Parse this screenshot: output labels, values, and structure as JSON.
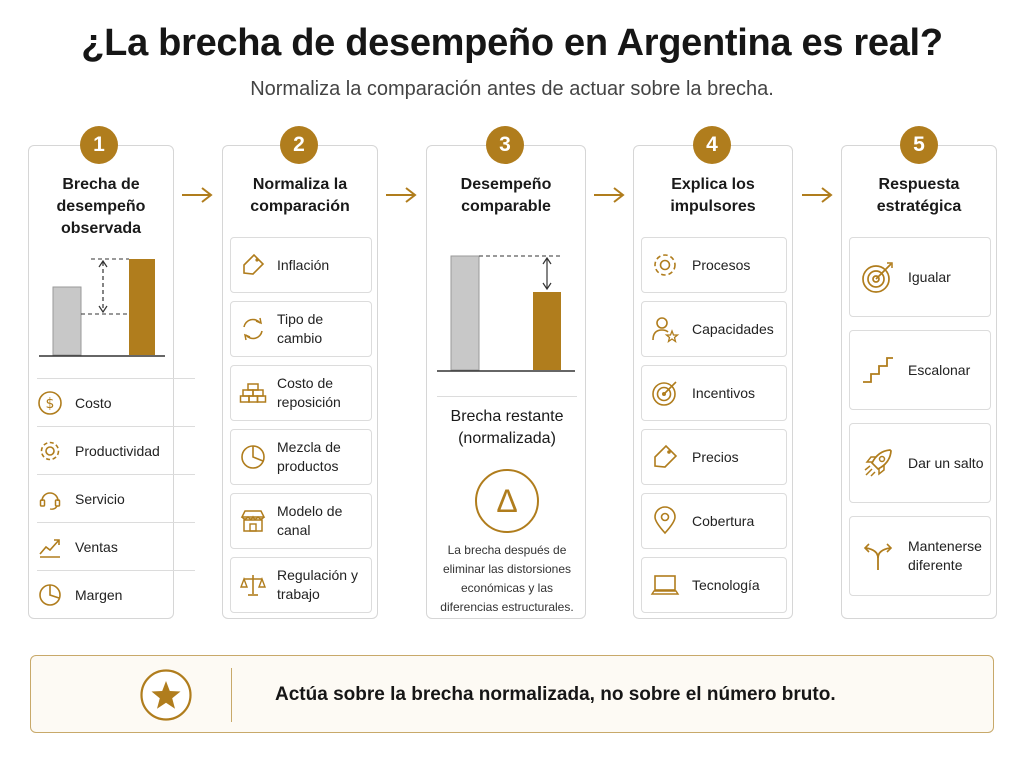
{
  "header": {
    "title": "¿La brecha de desempeño en Argentina es real?",
    "subtitle": "Normaliza la comparación antes de actuar sobre la brecha."
  },
  "colors": {
    "accent": "#b07d1d",
    "gray_bar": "#c8c8c8",
    "border": "#d6d6d6"
  },
  "steps": [
    {
      "number": "1",
      "title": "Brecha de desempeño observada",
      "items": [
        {
          "label": "Costo",
          "icon": "dollar-icon"
        },
        {
          "label": "Productividad",
          "icon": "gear-icon"
        },
        {
          "label": "Servicio",
          "icon": "headset-icon"
        },
        {
          "label": "Ventas",
          "icon": "growth-chart-icon"
        },
        {
          "label": "Margen",
          "icon": "pie-chart-icon"
        }
      ]
    },
    {
      "number": "2",
      "title": "Normaliza la comparación",
      "items": [
        {
          "label": "Inflación",
          "icon": "price-tag-icon"
        },
        {
          "label": "Tipo de cambio",
          "icon": "exchange-icon"
        },
        {
          "label": "Costo de reposición",
          "icon": "bricks-icon"
        },
        {
          "label": "Mezcla de productos",
          "icon": "pie-chart-icon"
        },
        {
          "label": "Modelo de canal",
          "icon": "storefront-icon"
        },
        {
          "label": "Regulación y trabajo",
          "icon": "scales-icon"
        }
      ]
    },
    {
      "number": "3",
      "title": "Desempeño comparable",
      "remaining_title": "Brecha restante",
      "remaining_subtitle": "(normalizada)",
      "delta_symbol": "Δ",
      "description": "La brecha después de eliminar las distorsiones económicas y las diferencias estructurales."
    },
    {
      "number": "4",
      "title": "Explica los impulsores",
      "items": [
        {
          "label": "Procesos",
          "icon": "gear-icon"
        },
        {
          "label": "Capacidades",
          "icon": "person-star-icon"
        },
        {
          "label": "Incentivos",
          "icon": "target-icon"
        },
        {
          "label": "Precios",
          "icon": "price-tag-icon"
        },
        {
          "label": "Cobertura",
          "icon": "location-pin-icon"
        },
        {
          "label": "Tecnología",
          "icon": "laptop-icon"
        }
      ]
    },
    {
      "number": "5",
      "title": "Respuesta estratégica",
      "items": [
        {
          "label": "Igualar",
          "icon": "target-arrow-icon"
        },
        {
          "label": "Escalonar",
          "icon": "stairs-icon"
        },
        {
          "label": "Dar un salto",
          "icon": "rocket-icon"
        },
        {
          "label": "Mantenerse diferente",
          "icon": "split-arrows-icon"
        }
      ]
    }
  ],
  "banner": {
    "text": "Actúa sobre la brecha normalizada, no sobre el número bruto.",
    "icon": "star-icon"
  }
}
